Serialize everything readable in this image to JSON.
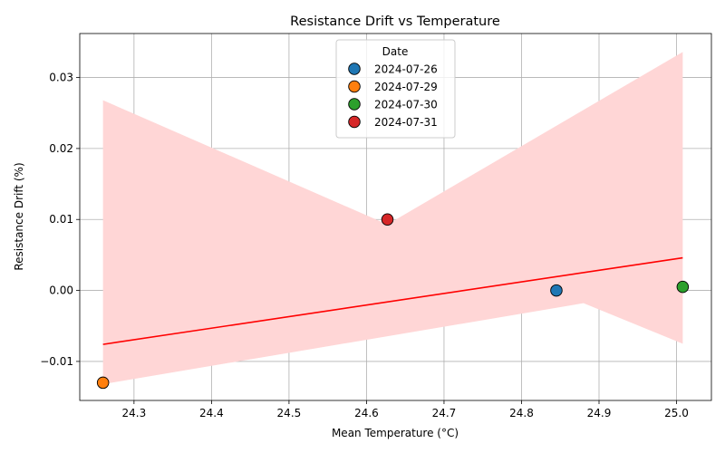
{
  "chart_data": {
    "type": "scatter",
    "title": "Resistance Drift vs Temperature",
    "xlabel": "Mean Temperature (°C)",
    "ylabel": "Resistance Drift (%)",
    "xlim": [
      24.23,
      25.045
    ],
    "ylim": [
      -0.0155,
      0.0362
    ],
    "xticks": [
      24.3,
      24.4,
      24.5,
      24.6,
      24.7,
      24.8,
      24.9,
      25.0
    ],
    "xtick_labels": [
      "24.3",
      "24.4",
      "24.5",
      "24.6",
      "24.7",
      "24.8",
      "24.9",
      "25.0"
    ],
    "yticks": [
      -0.01,
      0.0,
      0.01,
      0.02,
      0.03
    ],
    "ytick_labels": [
      "−0.01",
      "0.00",
      "0.01",
      "0.02",
      "0.03"
    ],
    "grid": true,
    "legend": {
      "title": "Date",
      "placement": "upper-center"
    },
    "series": [
      {
        "name": "2024-07-26",
        "color": "#1f77b4",
        "points": [
          {
            "x": 24.845,
            "y": 0.0
          }
        ]
      },
      {
        "name": "2024-07-29",
        "color": "#ff7f0e",
        "points": [
          {
            "x": 24.26,
            "y": -0.013
          }
        ]
      },
      {
        "name": "2024-07-30",
        "color": "#2ca02c",
        "points": [
          {
            "x": 25.008,
            "y": 0.0005
          }
        ]
      },
      {
        "name": "2024-07-31",
        "color": "#d62728",
        "points": [
          {
            "x": 24.627,
            "y": 0.01
          }
        ]
      }
    ],
    "regression": {
      "color": "#ff0000",
      "line": [
        {
          "x": 24.26,
          "y": -0.0076
        },
        {
          "x": 25.008,
          "y": 0.0046
        }
      ],
      "band_color": "#ffd6d6",
      "band_upper": [
        {
          "x": 24.26,
          "y": 0.0268
        },
        {
          "x": 24.627,
          "y": 0.0093
        },
        {
          "x": 25.008,
          "y": 0.0336
        }
      ],
      "band_lower": [
        {
          "x": 25.008,
          "y": -0.0075
        },
        {
          "x": 24.88,
          "y": -0.0018
        },
        {
          "x": 24.26,
          "y": -0.0132
        }
      ]
    }
  }
}
